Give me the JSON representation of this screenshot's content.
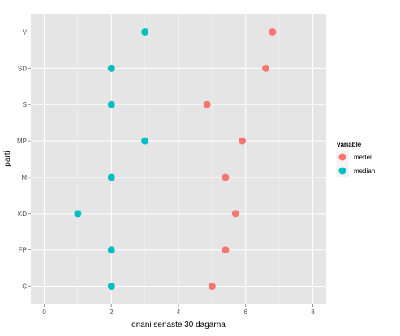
{
  "chart_data": {
    "type": "scatter",
    "xlabel": "onani senaste 30 dagarna",
    "ylabel": "parti",
    "xlim": [
      -0.4,
      8.4
    ],
    "xticks": [
      0,
      2,
      4,
      6,
      8
    ],
    "categories": [
      "C",
      "FP",
      "KD",
      "M",
      "MP",
      "S",
      "SD",
      "V"
    ],
    "grid": true,
    "legend": {
      "title": "variable",
      "position": "right"
    },
    "series": [
      {
        "name": "medel",
        "color": "#F8766D",
        "values": [
          5.0,
          5.4,
          5.7,
          5.4,
          5.9,
          4.85,
          6.6,
          6.8
        ]
      },
      {
        "name": "median",
        "color": "#00BFC4",
        "values": [
          2,
          2,
          1,
          2,
          3,
          2,
          2,
          3
        ]
      }
    ]
  }
}
